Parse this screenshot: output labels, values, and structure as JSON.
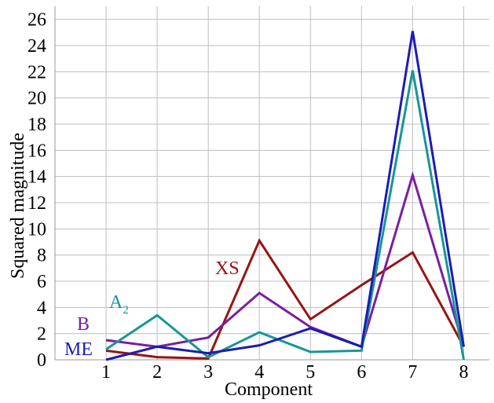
{
  "chart_data": {
    "type": "line",
    "xlabel": "Component",
    "ylabel": "Squared magnitude",
    "x": [
      1,
      2,
      3,
      4,
      5,
      6,
      7,
      8
    ],
    "xlim": [
      0,
      8.5
    ],
    "ylim": [
      0,
      27
    ],
    "xticks": [
      "1",
      "2",
      "3",
      "4",
      "5",
      "6",
      "7",
      "8"
    ],
    "yticks": [
      "0",
      "2",
      "4",
      "6",
      "8",
      "10",
      "12",
      "14",
      "16",
      "18",
      "20",
      "22",
      "24",
      "26"
    ],
    "grid": true,
    "series": [
      {
        "name": "ME",
        "color": "#1c1cb4",
        "values": [
          0.0,
          1.0,
          0.5,
          1.1,
          2.4,
          1.0,
          25.1,
          1.0
        ]
      },
      {
        "name": "B",
        "color": "#7a1f9e",
        "values": [
          1.5,
          1.0,
          1.7,
          5.1,
          2.5,
          1.0,
          14.1,
          1.0
        ]
      },
      {
        "name": "A",
        "name_subscript": "2",
        "color": "#179696",
        "values": [
          0.8,
          3.4,
          0.2,
          2.1,
          0.6,
          0.7,
          22.1,
          0.0
        ]
      },
      {
        "name": "XS",
        "color": "#971414",
        "values": [
          0.7,
          0.2,
          0.1,
          9.1,
          3.1,
          5.7,
          8.2,
          1.0
        ]
      }
    ]
  }
}
